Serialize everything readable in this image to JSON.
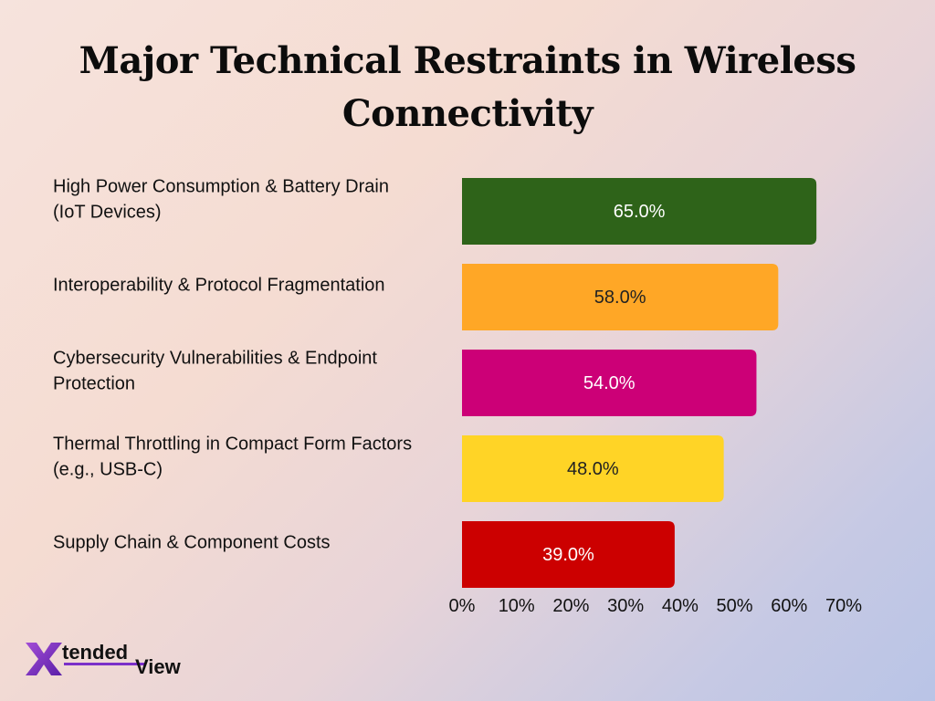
{
  "chart_data": {
    "type": "bar",
    "orientation": "horizontal",
    "title": "Major Technical Restraints in Wireless Connectivity",
    "categories": [
      [
        "High Power Consumption & Battery Drain",
        "(IoT Devices)"
      ],
      [
        "Interoperability & Protocol Fragmentation"
      ],
      [
        "Cybersecurity Vulnerabilities & Endpoint",
        "Protection"
      ],
      [
        "Thermal Throttling in Compact Form Factors",
        "(e.g., USB-C)"
      ],
      [
        "Supply Chain & Component Costs"
      ]
    ],
    "values": [
      65.0,
      58.0,
      54.0,
      48.0,
      39.0
    ],
    "value_labels": [
      "65.0%",
      "58.0%",
      "54.0%",
      "48.0%",
      "39.0%"
    ],
    "colors": [
      "#2e6319",
      "#ffa726",
      "#cc0077",
      "#ffd426",
      "#cc0000"
    ],
    "value_label_colors": [
      "#ffffff",
      "#222222",
      "#ffffff",
      "#222222",
      "#ffffff"
    ],
    "xlim": [
      0,
      70
    ],
    "xticks": [
      "0%",
      "10%",
      "20%",
      "30%",
      "40%",
      "50%",
      "60%",
      "70%"
    ],
    "xlabel": "",
    "ylabel": "",
    "grid": false,
    "legend": "none"
  },
  "logo": {
    "mark": "X",
    "word1": "tended",
    "word2": "View"
  }
}
